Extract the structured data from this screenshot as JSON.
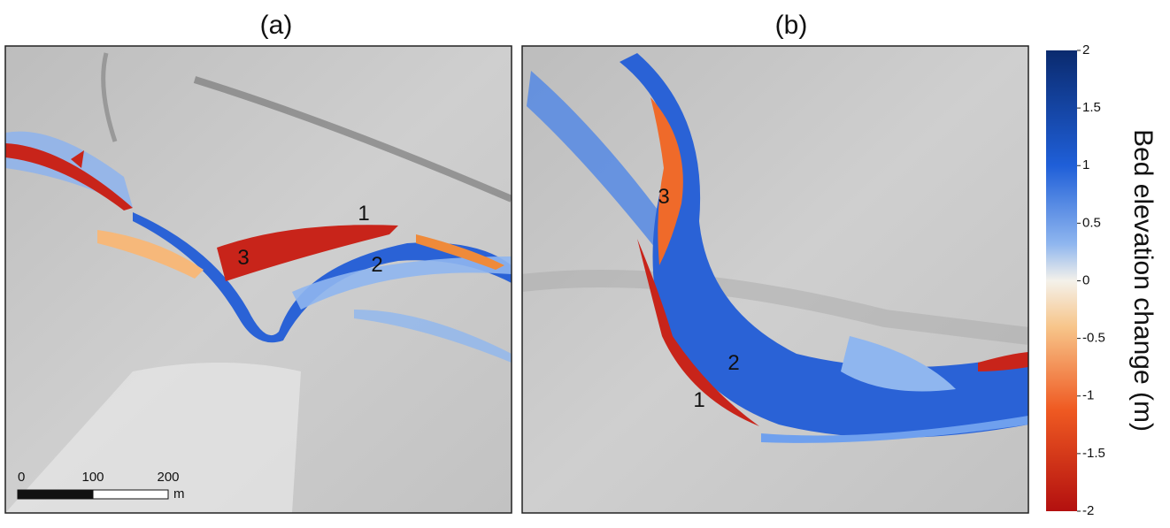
{
  "panels": [
    {
      "title": "(a)",
      "labels": [
        "1",
        "2",
        "3"
      ]
    },
    {
      "title": "(b)",
      "labels": [
        "3",
        "2",
        "1"
      ]
    }
  ],
  "scale_bar": {
    "ticks": [
      0,
      100,
      200
    ],
    "unit": "m"
  },
  "colorbar": {
    "title": "Bed elevation change (m)",
    "lim": [
      -2,
      2
    ],
    "ticks": [
      2,
      1.5,
      1,
      0.5,
      0,
      -0.5,
      -1,
      -1.5,
      -2
    ]
  }
}
